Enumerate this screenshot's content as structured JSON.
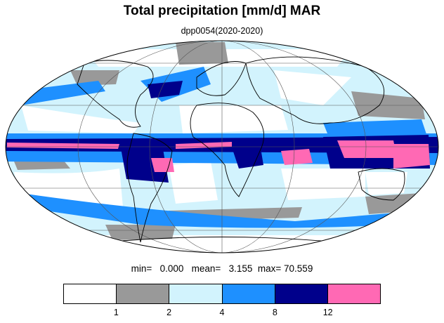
{
  "title": "Total precipitation [mm/d] MAR",
  "subtitle": "dpp0054(2020-2020)",
  "stats": {
    "min_label": "min=",
    "min_value": "0.000",
    "mean_label": "mean=",
    "mean_value": "3.155",
    "max_label": "max=",
    "max_value": "70.559"
  },
  "map": {
    "projection": "mollweide",
    "graticule": true,
    "coastlines": true
  },
  "colorbar": {
    "colors": [
      "#ffffff",
      "#999999",
      "#d2f3fd",
      "#1e90ff",
      "#00008b",
      "#ff69b4"
    ],
    "tick_labels": [
      "1",
      "2",
      "4",
      "8",
      "12"
    ]
  }
}
